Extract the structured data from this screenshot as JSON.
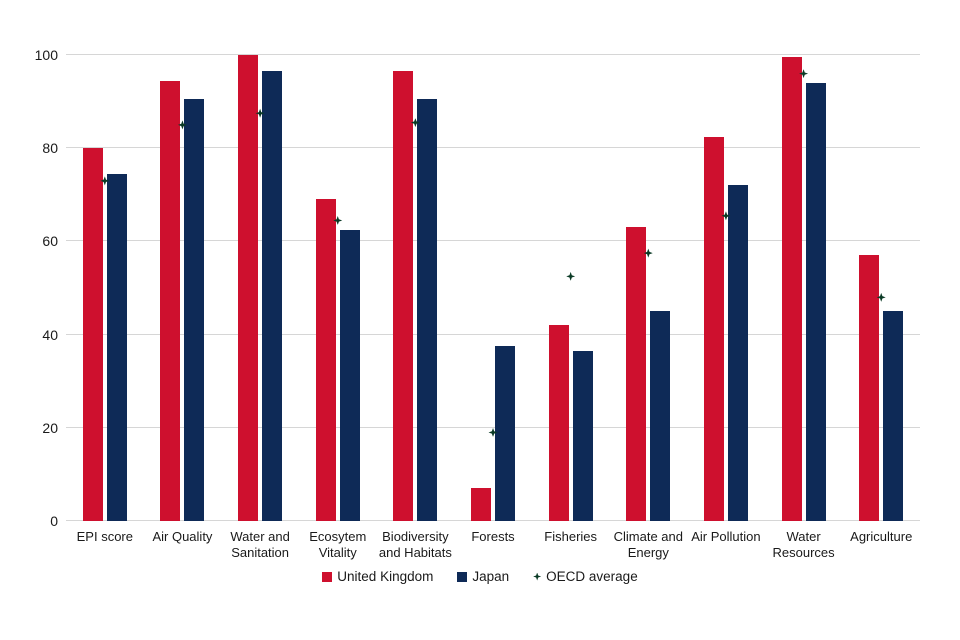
{
  "chart_data": {
    "type": "bar",
    "title": "",
    "xlabel": "",
    "ylabel": "",
    "categories": [
      "EPI score",
      "Air Quality",
      "Water and Sanitation",
      "Ecosytem Vitality",
      "Biodiversity and Habitats",
      "Forests",
      "Fisheries",
      "Climate and Energy",
      "Air Pollution",
      "Water Resources",
      "Agriculture"
    ],
    "series": [
      {
        "name": "United Kingdom",
        "type": "bar",
        "color": "#ce102e",
        "values": [
          80,
          94.5,
          100,
          69,
          96.5,
          7,
          42,
          63,
          82.5,
          99.5,
          57
        ]
      },
      {
        "name": "Japan",
        "type": "bar",
        "color": "#0e2a57",
        "values": [
          74.5,
          90.5,
          96.5,
          62.5,
          90.5,
          37.5,
          36.5,
          45,
          72,
          94,
          45
        ]
      },
      {
        "name": "OECD average",
        "type": "scatter",
        "marker": "diamond",
        "color": "#0b3b26",
        "values": [
          73,
          85,
          87.5,
          64.5,
          85.5,
          19,
          52.5,
          57.5,
          65.5,
          96,
          48
        ]
      }
    ],
    "ylim": [
      0,
      100
    ],
    "yticks": [
      0,
      20,
      40,
      60,
      80,
      100
    ],
    "grid": "horizontal",
    "legend_position": "bottom"
  },
  "colors": {
    "uk_red": "#ce102e",
    "japan_navy": "#0e2a57",
    "oecd_green": "#0b3b26",
    "gridline": "#d6d6d6",
    "text": "#1a1a1a",
    "background": "#ffffff"
  }
}
